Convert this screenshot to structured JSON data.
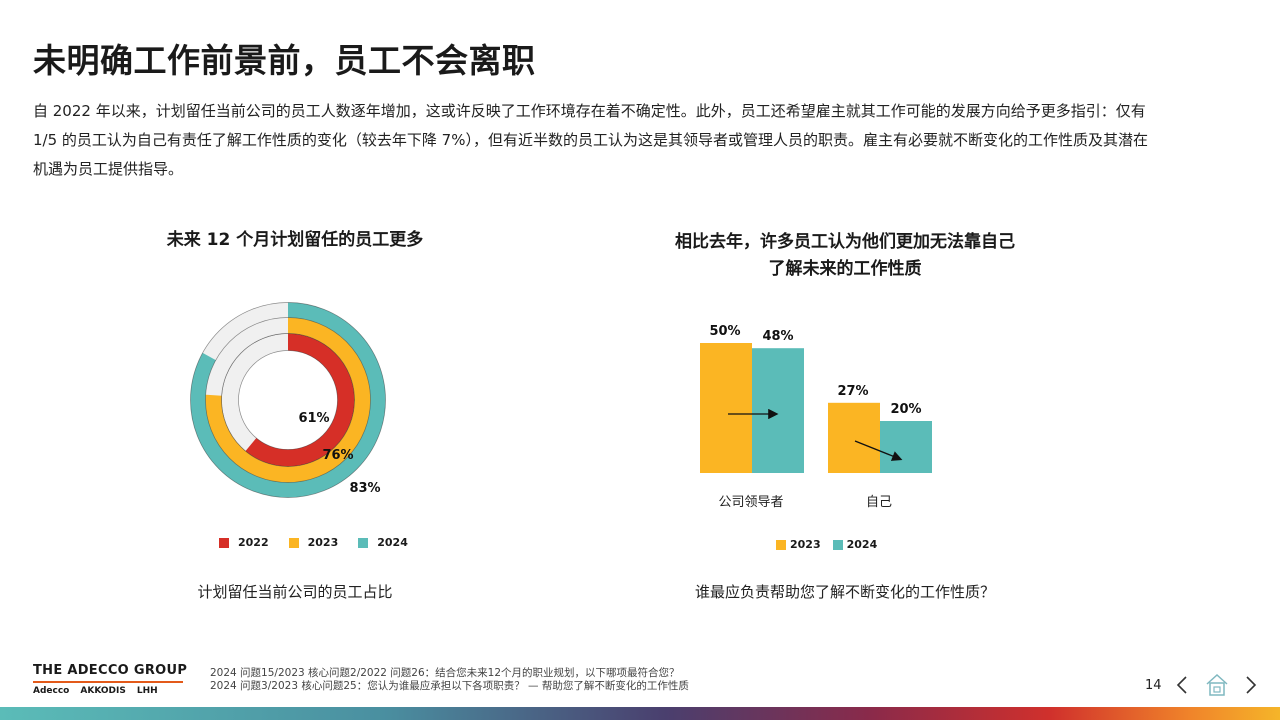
{
  "title": "未明确工作前景前，员工不会离职",
  "body": {
    "line1": "自 2022 年以来，计划留任当前公司的员工人数逐年增加，这或许反映了工作环境存在着不确定性。此外，员工还希望雇主就其工作可能的发展方向给予更多指引：仅有",
    "line2": "1/5 的员工认为自己有责任了解工作性质的变化（较去年下降 7%），但有近半数的员工认为这是其领导者或管理人员的职责。雇主有必要就不断变化的工作性质及其潜在",
    "line3": "机遇为员工提供指导。"
  },
  "colors": {
    "y2022": "#d62f27",
    "y2023": "#fbb523",
    "y2024": "#5bbcb8",
    "track": "#f0f0f0"
  },
  "chart_data": [
    {
      "type": "pie",
      "title": "未来 12 个月计划留任的员工更多",
      "subtitle": "计划留任当前公司的员工占比",
      "series": [
        {
          "name": "2022",
          "value": 61,
          "label": "61%"
        },
        {
          "name": "2023",
          "value": 76,
          "label": "76%"
        },
        {
          "name": "2024",
          "value": 83,
          "label": "83%"
        }
      ],
      "legend": [
        "2022",
        "2023",
        "2024"
      ]
    },
    {
      "type": "bar",
      "title_line1": "相比去年，许多员工认为他们更加无法靠自己",
      "title_line2": "了解未来的工作性质",
      "subtitle": "谁最应负责帮助您了解不断变化的工作性质？",
      "categories": [
        "公司领导者",
        "自己"
      ],
      "series": [
        {
          "name": "2023",
          "values": [
            50,
            27
          ],
          "labels": [
            "50%",
            "27%"
          ]
        },
        {
          "name": "2024",
          "values": [
            48,
            20
          ],
          "labels": [
            "48%",
            "20%"
          ]
        }
      ],
      "ylim": [
        0,
        50
      ],
      "legend": [
        "2023",
        "2024"
      ]
    }
  ],
  "footer": {
    "brand": "THE ADECCO GROUP",
    "subs": [
      "Adecco",
      "AKKODIS",
      "LHH"
    ],
    "note1": "2024 问题15/2023 核心问题2/2022 问题26：结合您未来12个月的职业规划，以下哪项最符合您？",
    "note2": "2024 问题3/2023 核心问题25：您认为谁最应承担以下各项职责？ — 帮助您了解不断变化的工作性质",
    "page": "14"
  }
}
